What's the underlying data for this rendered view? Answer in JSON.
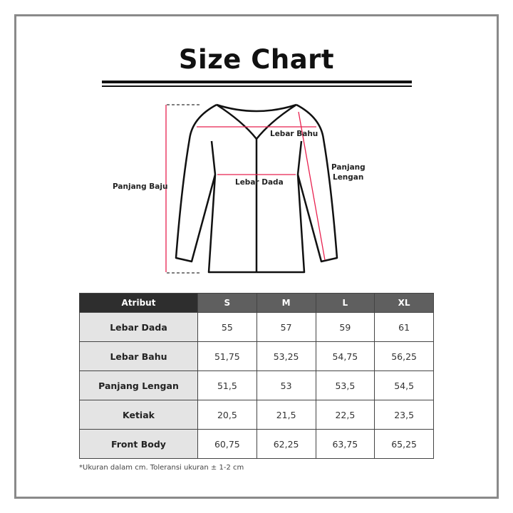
{
  "title": "Size Chart",
  "diagram": {
    "labels": {
      "panjang_baju": "Panjang Baju",
      "lebar_bahu": "Lebar Bahu",
      "lebar_dada": "Lebar Dada",
      "panjang_lengan_1": "Panjang",
      "panjang_lengan_2": "Lengan"
    },
    "measure_color": "#e8214f"
  },
  "table": {
    "headers": [
      "Atribut",
      "S",
      "M",
      "L",
      "XL"
    ],
    "rows": [
      {
        "attr": "Lebar Dada",
        "values": [
          "55",
          "57",
          "59",
          "61"
        ]
      },
      {
        "attr": "Lebar Bahu",
        "values": [
          "51,75",
          "53,25",
          "54,75",
          "56,25"
        ]
      },
      {
        "attr": "Panjang Lengan",
        "values": [
          "51,5",
          "53",
          "53,5",
          "54,5"
        ]
      },
      {
        "attr": "Ketiak",
        "values": [
          "20,5",
          "21,5",
          "22,5",
          "23,5"
        ]
      },
      {
        "attr": "Front Body",
        "values": [
          "60,75",
          "62,25",
          "63,75",
          "65,25"
        ]
      }
    ]
  },
  "note": "*Ukuran dalam cm. Toleransi ukuran ± 1-2 cm"
}
